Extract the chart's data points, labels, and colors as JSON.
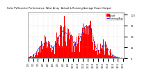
{
  "title": "Solar PV/Inverter Performance  West Array  Actual & Running Average Power Output",
  "bar_color": "#ff0000",
  "avg_color": "#0000dd",
  "background_color": "#ffffff",
  "plot_bg_color": "#ffffff",
  "grid_color": "#aaaaaa",
  "text_color": "#000000",
  "legend_actual": "Actual",
  "legend_avg": "Running Avg",
  "n_bars": 200,
  "ylim_max": 1.05,
  "ytick_labels": [
    "0",
    "25",
    "50",
    "75",
    "100"
  ]
}
